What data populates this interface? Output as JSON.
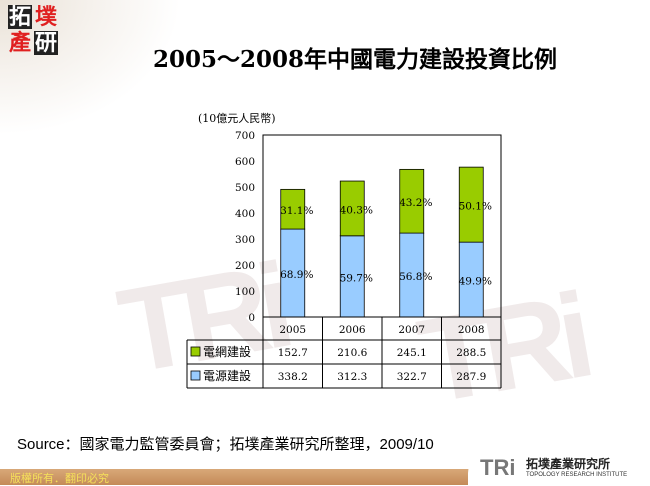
{
  "logo": {
    "chars": [
      "拓",
      "墣",
      "產",
      "研"
    ]
  },
  "title": "2005～2008年中國電力建設投資比例",
  "chart_data": {
    "type": "stacked-bar",
    "ylabel": "(10億元人民幣)",
    "ylim": [
      0,
      700
    ],
    "yticks": [
      0,
      100,
      200,
      300,
      400,
      500,
      600,
      700
    ],
    "categories": [
      "2005",
      "2006",
      "2007",
      "2008"
    ],
    "series": [
      {
        "name": "電源建設",
        "values": [
          338.2,
          312.3,
          322.7,
          287.9
        ],
        "labels": [
          "68.9%",
          "59.7%",
          "56.8%",
          "49.9%"
        ],
        "color": "#99ccff"
      },
      {
        "name": "電網建設",
        "values": [
          152.7,
          210.6,
          245.1,
          288.5
        ],
        "labels": [
          "31.1%",
          "40.3%",
          "43.2%",
          "50.1%"
        ],
        "color": "#99cc00"
      }
    ],
    "table_rows": [
      {
        "name": "電網建設",
        "values": [
          "152.7",
          "210.6",
          "245.1",
          "288.5"
        ],
        "color": "#99cc00"
      },
      {
        "name": "電源建設",
        "values": [
          "338.2",
          "312.3",
          "322.7",
          "287.9"
        ],
        "color": "#99ccff"
      }
    ]
  },
  "source": "Source：國家電力監管委員會；拓墣產業研究所整理，2009/10",
  "footer": {
    "copyright": "版權所有．翻印必究",
    "tri_mark": "TRi",
    "tri_cn": "拓墣產業研究所",
    "tri_en": "TOPOLOGY RESEARCH INSTITUTE"
  }
}
